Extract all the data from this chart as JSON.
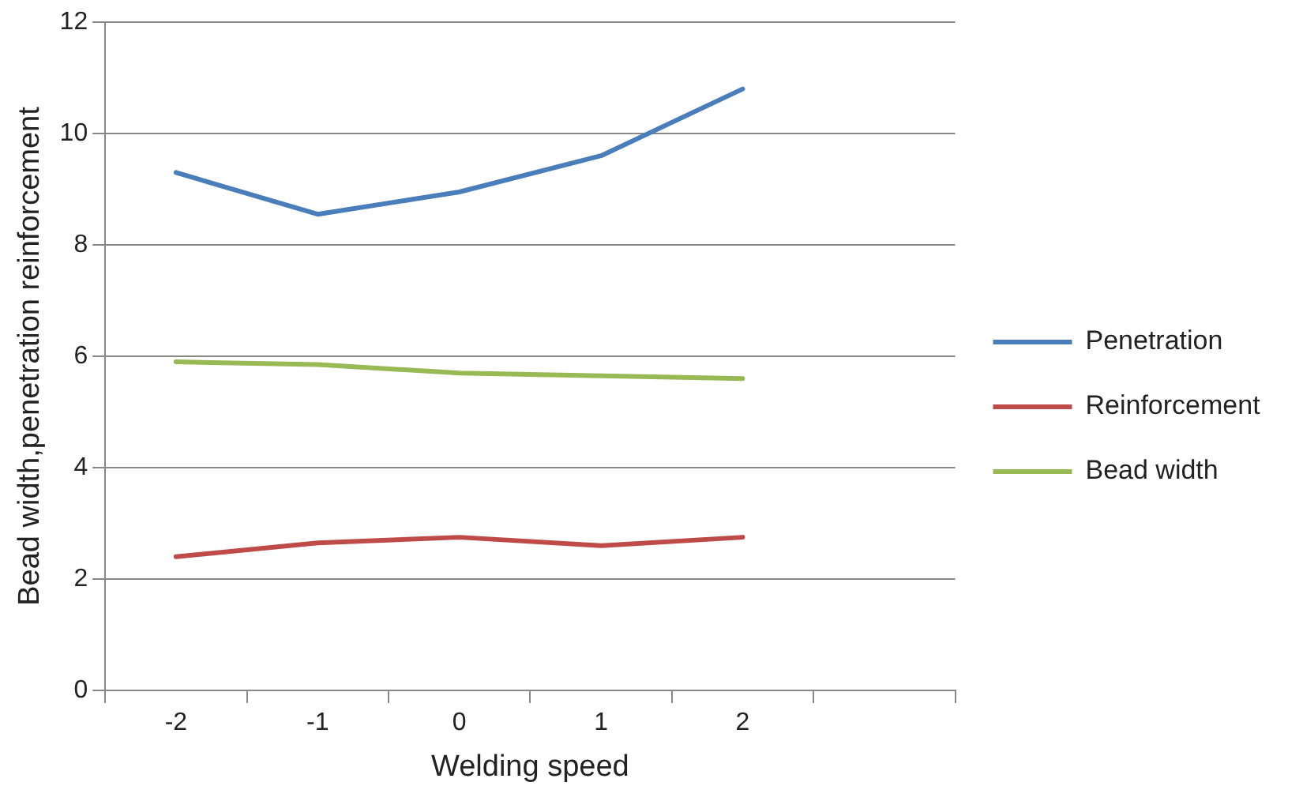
{
  "chart_data": {
    "type": "line",
    "xlabel": "Welding speed",
    "ylabel": "Bead width,penetration reinforcement",
    "categories": [
      "-2",
      "-1",
      "0",
      "1",
      "2",
      null
    ],
    "series": [
      {
        "name": "Penetration",
        "color": "#4a7ebb",
        "values": [
          9.3,
          8.55,
          8.95,
          9.6,
          10.8,
          null
        ]
      },
      {
        "name": "Reinforcement",
        "color": "#be4b48",
        "values": [
          2.4,
          2.65,
          2.75,
          2.6,
          2.75,
          null
        ]
      },
      {
        "name": "Bead width",
        "color": "#98b954",
        "values": [
          5.9,
          5.85,
          5.7,
          5.65,
          5.6,
          null
        ]
      }
    ],
    "ylim": [
      0,
      12
    ],
    "yticks": [
      0,
      2,
      4,
      6,
      8,
      10,
      12
    ],
    "grid": "y",
    "legend": "right",
    "marker": "none",
    "line_style": "solid"
  }
}
